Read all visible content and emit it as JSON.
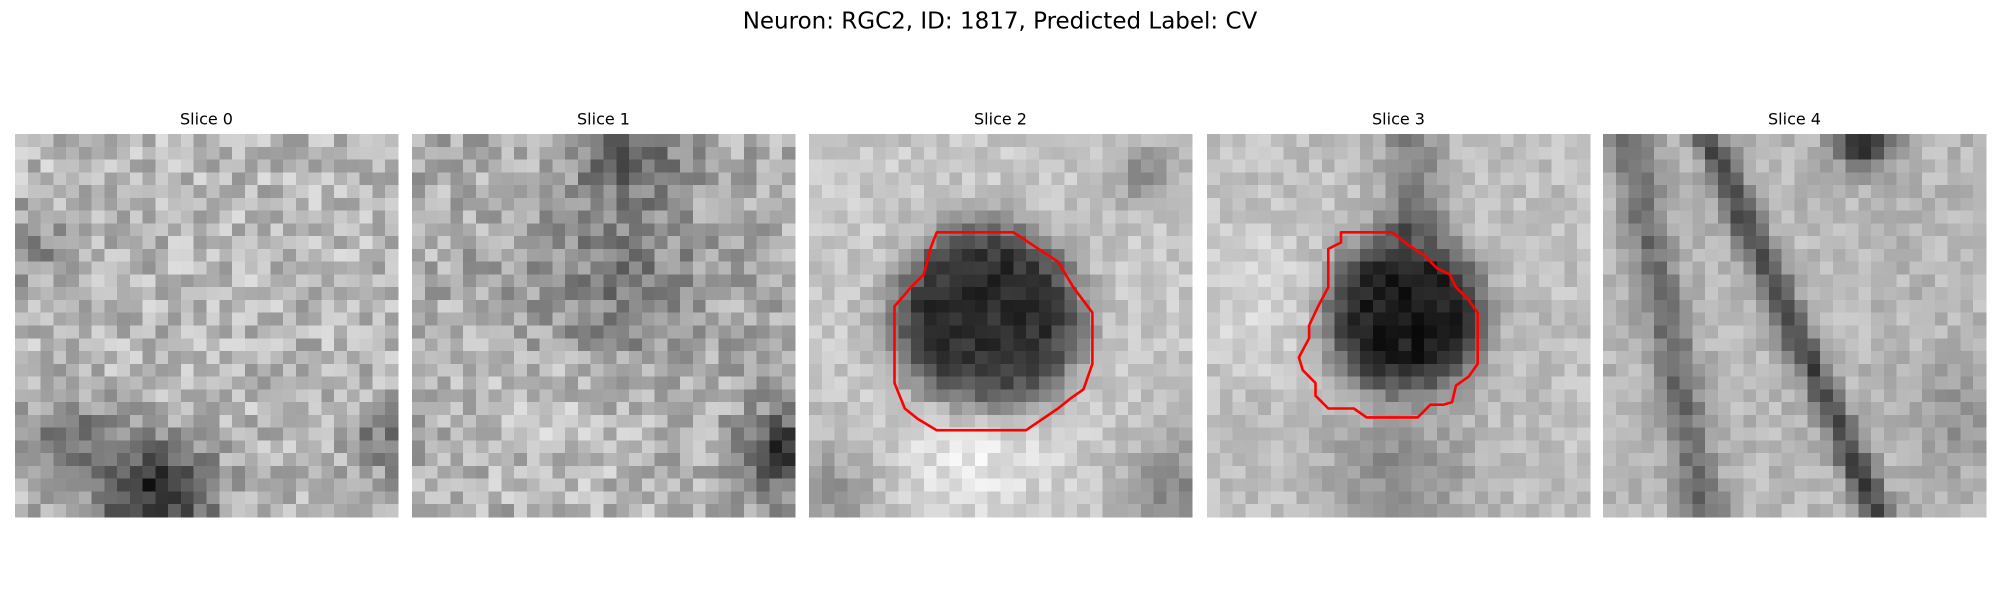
{
  "title": "Neuron: RGC2, ID: 1817, Predicted Label: CV",
  "panels": [
    {
      "title": "Slice 0"
    },
    {
      "title": "Slice 1"
    },
    {
      "title": "Slice 2"
    },
    {
      "title": "Slice 3"
    },
    {
      "title": "Slice 4"
    }
  ]
}
